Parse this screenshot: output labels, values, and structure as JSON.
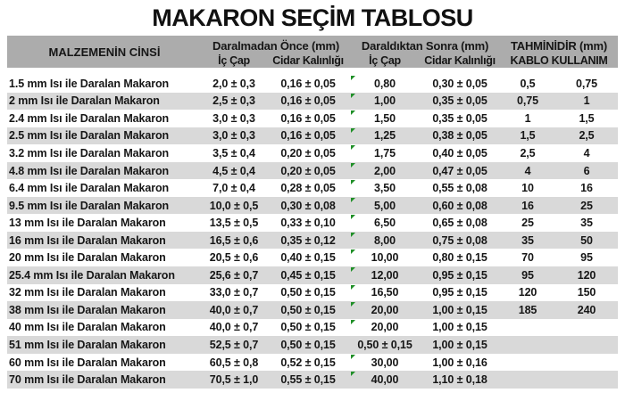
{
  "title": "MAKARON SEÇİM TABLOSU",
  "header": {
    "material_col": "MALZEMENİN CİNSİ",
    "group_before": "Daralmadan Önce (mm)",
    "group_after": "Daraldıktan Sonra (mm)",
    "group_estimate": "TAHMİNİDİR (mm)",
    "sub_ic_cap_before": "İç Çap",
    "sub_cidar_before": "Cidar Kalınlığı",
    "sub_ic_cap_after": "İç Çap",
    "sub_cidar_after": "Cidar Kalınlığı",
    "sub_kablo": "KABLO KULLANIM"
  },
  "colors": {
    "header_bg": "#acacac",
    "row_alt_bg": "#d9d9d9",
    "row_bg": "#ffffff",
    "text": "#161616",
    "flag_green": "#1f8f27"
  },
  "rows": [
    {
      "cells": [
        "1.5 mm Isı ile Daralan Makaron",
        "2,0 ± 0,3",
        "0,16 ± 0,05",
        "0,80",
        "0,30 ± 0,05",
        "0,5",
        "0,75"
      ],
      "flag": true
    },
    {
      "cells": [
        "2 mm Isı ile Daralan Makaron",
        "2,5 ± 0,3",
        "0,16 ± 0,05",
        "1,00",
        "0,35 ± 0,05",
        "0,75",
        "1"
      ],
      "flag": true
    },
    {
      "cells": [
        "2.4 mm Isı ile Daralan Makaron",
        "3,0 ± 0,3",
        "0,16 ± 0,05",
        "1,50",
        "0,35 ± 0,05",
        "1",
        "1,5"
      ],
      "flag": true
    },
    {
      "cells": [
        "2.5 mm Isı ile Daralan Makaron",
        "3,0 ± 0,3",
        "0,16 ± 0,05",
        "1,25",
        "0,38 ± 0,05",
        "1,5",
        "2,5"
      ],
      "flag": true
    },
    {
      "cells": [
        "3.2 mm Isı ile Daralan Makaron",
        "3,5 ± 0,4",
        "0,20 ± 0,05",
        "1,75",
        "0,40 ± 0,05",
        "2,5",
        "4"
      ],
      "flag": true
    },
    {
      "cells": [
        "4.8 mm Isı ile Daralan Makaron",
        "4,5 ± 0,4",
        "0,20 ± 0,05",
        "2,00",
        "0,47 ± 0,05",
        "4",
        "6"
      ],
      "flag": true
    },
    {
      "cells": [
        "6.4 mm Isı ile Daralan Makaron",
        "7,0 ± 0,4",
        "0,28 ± 0,05",
        "3,50",
        "0,55 ± 0,08",
        "10",
        "16"
      ],
      "flag": true
    },
    {
      "cells": [
        "9.5 mm Isı ile Daralan Makaron",
        "10,0 ± 0,5",
        "0,30 ± 0,08",
        "5,00",
        "0,60 ± 0,08",
        "16",
        "25"
      ],
      "flag": true
    },
    {
      "cells": [
        "13 mm Isı ile Daralan Makaron",
        "13,5 ± 0,5",
        "0,33 ± 0,10",
        "6,50",
        "0,65 ± 0,08",
        "25",
        "35"
      ],
      "flag": true
    },
    {
      "cells": [
        "16 mm Isı ile Daralan Makaron",
        "16,5 ± 0,6",
        "0,35 ± 0,12",
        "8,00",
        "0,75 ± 0,08",
        "35",
        "50"
      ],
      "flag": true
    },
    {
      "cells": [
        "20 mm Isı ile Daralan Makaron",
        "20,5 ± 0,6",
        "0,40 ± 0,15",
        "10,00",
        "0,80 ± 0,15",
        "70",
        "95"
      ],
      "flag": true
    },
    {
      "cells": [
        "25.4 mm Isı ile Daralan Makaron",
        "25,6 ± 0,7",
        "0,45 ± 0,15",
        "12,00",
        "0,95 ± 0,15",
        "95",
        "120"
      ],
      "flag": true
    },
    {
      "cells": [
        "32 mm Isı ile Daralan Makaron",
        "33,0 ± 0,7",
        "0,50 ± 0,15",
        "16,50",
        "0,95 ± 0,15",
        "120",
        "150"
      ],
      "flag": true
    },
    {
      "cells": [
        "38 mm Isı ile Daralan Makaron",
        "40,0 ± 0,7",
        "0,50 ± 0,15",
        "20,00",
        "1,00 ± 0,15",
        "185",
        "240"
      ],
      "flag": true
    },
    {
      "cells": [
        "40 mm Isı ile Daralan Makaron",
        "40,0 ± 0,7",
        "0,50 ± 0,15",
        "20,00",
        "1,00 ± 0,15",
        "",
        ""
      ],
      "flag": true
    },
    {
      "cells": [
        "51 mm Isı ile Daralan Makaron",
        "52,5 ± 0,7",
        "0,50 ± 0,15",
        "0,50 ± 0,15",
        "1,00 ± 0,15",
        "",
        ""
      ],
      "flag": false
    },
    {
      "cells": [
        "60 mm Isı ile Daralan Makaron",
        "60,5 ± 0,8",
        "0,52 ± 0,15",
        "30,00",
        "1,00 ± 0,16",
        "",
        ""
      ],
      "flag": true
    },
    {
      "cells": [
        "70 mm Isı ile Daralan Makaron",
        "70,5 ± 1,0",
        "0,55 ± 0,15",
        "40,00",
        "1,10 ± 0,18",
        "",
        ""
      ],
      "flag": true
    }
  ]
}
